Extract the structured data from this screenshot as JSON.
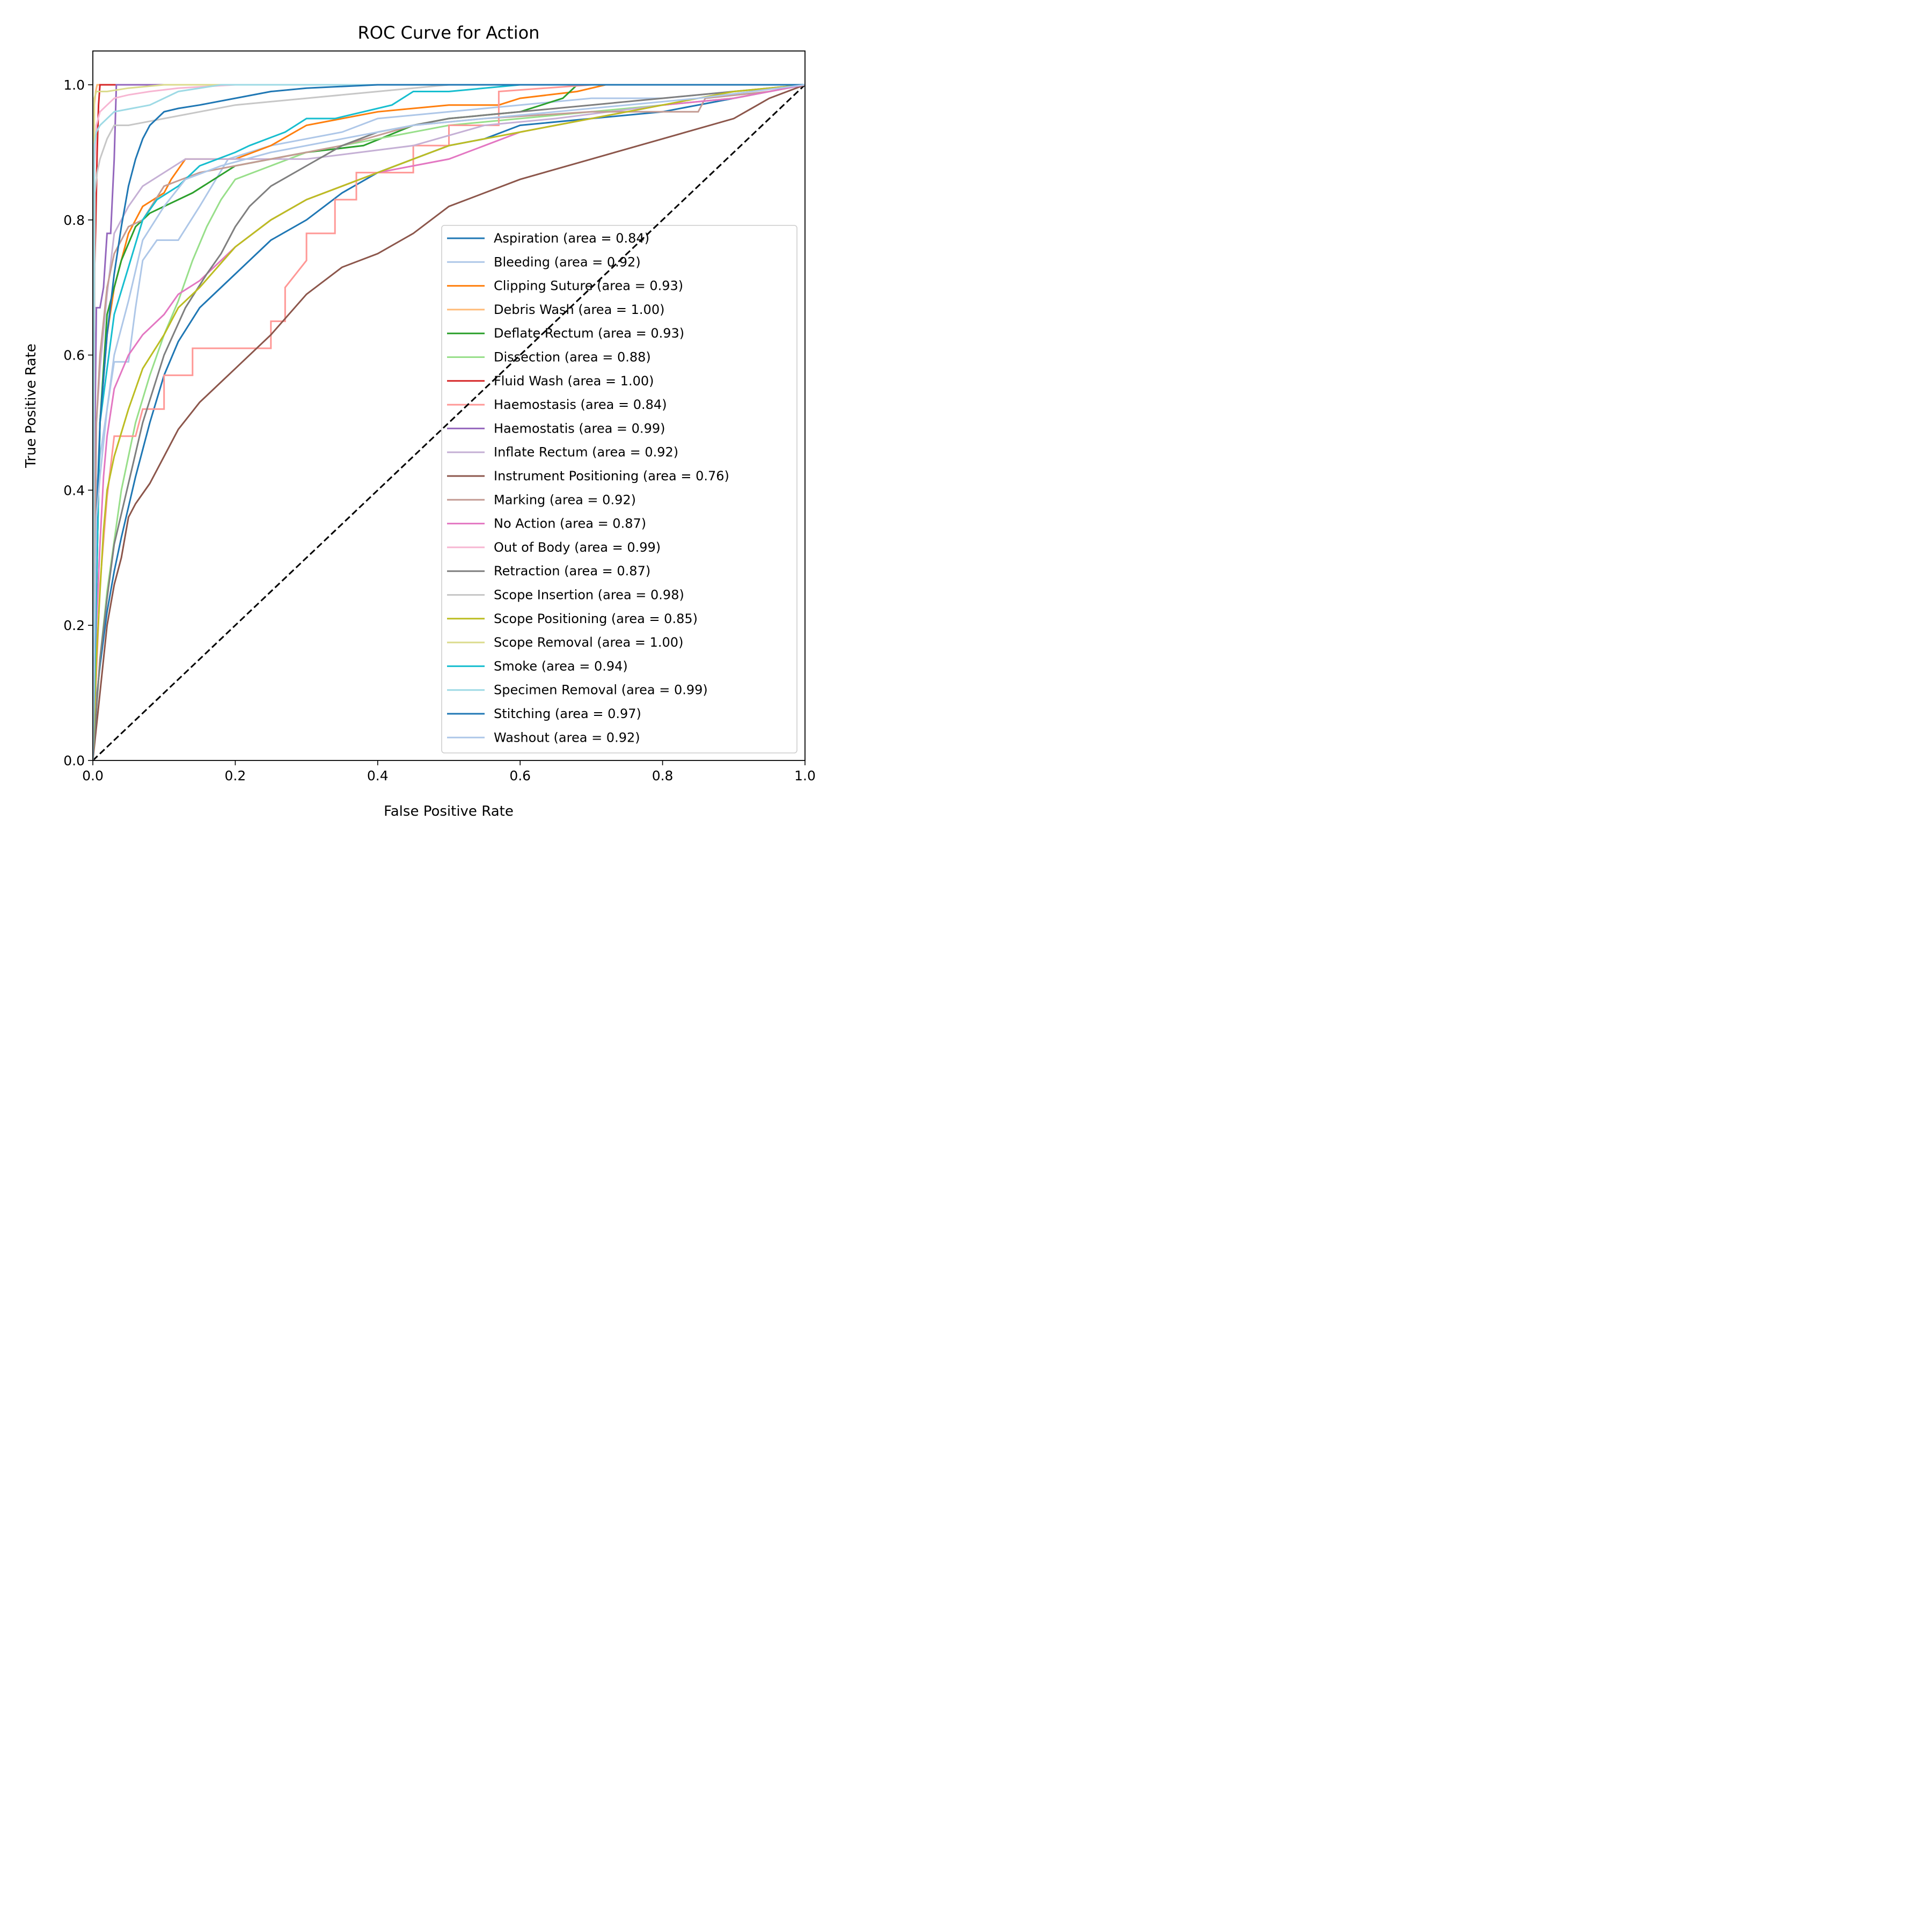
{
  "chart_data": {
    "type": "line",
    "title": "ROC Curve for Action",
    "xlabel": "False Positive Rate",
    "ylabel": "True Positive Rate",
    "xlim": [
      0.0,
      1.0
    ],
    "ylim": [
      0.0,
      1.05
    ],
    "xticks": [
      "0.0",
      "0.2",
      "0.4",
      "0.6",
      "0.8",
      "1.0"
    ],
    "yticks": [
      "0.0",
      "0.2",
      "0.4",
      "0.6",
      "0.8",
      "1.0"
    ],
    "grid": false,
    "legend_position": "lower-right",
    "reference_line": {
      "name": "chance",
      "x": [
        0,
        1
      ],
      "y": [
        0,
        1
      ],
      "color": "#000000",
      "style": "dashed"
    },
    "series": [
      {
        "name": "Aspiration",
        "label": "Aspiration (area = 0.84)",
        "color": "#1f77b4",
        "x": [
          0,
          0.003,
          0.006,
          0.01,
          0.015,
          0.02,
          0.03,
          0.04,
          0.06,
          0.08,
          0.1,
          0.12,
          0.15,
          0.2,
          0.25,
          0.3,
          0.35,
          0.4,
          0.45,
          0.5,
          0.55,
          0.6,
          0.7,
          0.8,
          0.9,
          1.0
        ],
        "y": [
          0,
          0.06,
          0.1,
          0.14,
          0.18,
          0.22,
          0.28,
          0.33,
          0.42,
          0.5,
          0.57,
          0.62,
          0.67,
          0.72,
          0.77,
          0.8,
          0.84,
          0.87,
          0.89,
          0.91,
          0.92,
          0.94,
          0.95,
          0.96,
          0.98,
          1.0
        ]
      },
      {
        "name": "Bleeding",
        "label": "Bleeding (area = 0.92)",
        "color": "#aec7e8",
        "x": [
          0,
          0.005,
          0.01,
          0.02,
          0.03,
          0.05,
          0.06,
          0.07,
          0.09,
          0.12,
          0.15,
          0.19,
          0.25,
          0.3,
          0.35,
          0.4,
          0.5,
          0.6,
          0.7,
          0.8,
          0.9,
          1.0
        ],
        "y": [
          0,
          0.4,
          0.45,
          0.52,
          0.59,
          0.59,
          0.67,
          0.74,
          0.77,
          0.77,
          0.82,
          0.89,
          0.91,
          0.92,
          0.93,
          0.95,
          0.96,
          0.97,
          0.98,
          0.98,
          0.99,
          1.0
        ]
      },
      {
        "name": "Clipping Suture",
        "label": "Clipping Suture (area = 0.93)",
        "color": "#ff7f0e",
        "x": [
          0,
          0.01,
          0.02,
          0.03,
          0.05,
          0.07,
          0.1,
          0.11,
          0.13,
          0.2,
          0.25,
          0.3,
          0.4,
          0.5,
          0.57,
          0.6,
          0.68,
          0.72,
          0.8,
          0.9,
          1.0
        ],
        "y": [
          0,
          0.5,
          0.63,
          0.7,
          0.78,
          0.82,
          0.84,
          0.86,
          0.89,
          0.89,
          0.91,
          0.94,
          0.96,
          0.97,
          0.97,
          0.98,
          0.99,
          1.0,
          1.0,
          1.0,
          1.0
        ]
      },
      {
        "name": "Debris Wash",
        "label": "Debris Wash (area = 1.00)",
        "color": "#ffbb78",
        "x": [
          0,
          0.002,
          0.004,
          0.006,
          0.01,
          0.03,
          0.1,
          0.3,
          0.5,
          0.7,
          0.9,
          1.0
        ],
        "y": [
          0,
          0.97,
          0.99,
          1.0,
          1.0,
          1.0,
          1.0,
          1.0,
          1.0,
          1.0,
          1.0,
          1.0
        ]
      },
      {
        "name": "Deflate Rectum",
        "label": "Deflate Rectum (area = 0.93)",
        "color": "#2ca02c",
        "x": [
          0,
          0.01,
          0.02,
          0.04,
          0.06,
          0.08,
          0.1,
          0.14,
          0.2,
          0.25,
          0.3,
          0.38,
          0.45,
          0.5,
          0.6,
          0.66,
          0.68,
          0.8,
          0.9,
          1.0
        ],
        "y": [
          0,
          0.5,
          0.66,
          0.74,
          0.79,
          0.81,
          0.82,
          0.84,
          0.88,
          0.89,
          0.9,
          0.91,
          0.94,
          0.95,
          0.96,
          0.98,
          1.0,
          1.0,
          1.0,
          1.0
        ]
      },
      {
        "name": "Dissection",
        "label": "Dissection (area = 0.88)",
        "color": "#98df8a",
        "x": [
          0,
          0.01,
          0.02,
          0.04,
          0.06,
          0.08,
          0.1,
          0.12,
          0.14,
          0.16,
          0.18,
          0.2,
          0.25,
          0.3,
          0.35,
          0.4,
          0.5,
          0.6,
          0.7,
          0.8,
          0.9,
          1.0
        ],
        "y": [
          0,
          0.15,
          0.25,
          0.4,
          0.5,
          0.57,
          0.63,
          0.68,
          0.74,
          0.79,
          0.83,
          0.86,
          0.88,
          0.9,
          0.91,
          0.92,
          0.94,
          0.95,
          0.96,
          0.97,
          0.98,
          1.0
        ]
      },
      {
        "name": "Fluid Wash",
        "label": "Fluid Wash (area = 1.00)",
        "color": "#d62728",
        "x": [
          0,
          0.002,
          0.004,
          0.006,
          0.008,
          0.01,
          0.02,
          0.03,
          0.1,
          0.3,
          0.5,
          0.7,
          0.9,
          1.0
        ],
        "y": [
          0,
          0.71,
          0.79,
          0.9,
          0.97,
          1.0,
          1.0,
          1.0,
          1.0,
          1.0,
          1.0,
          1.0,
          1.0,
          1.0
        ]
      },
      {
        "name": "Haemostasis",
        "label": "Haemostasis (area = 0.84)",
        "color": "#ff9896",
        "x": [
          0,
          0.01,
          0.02,
          0.03,
          0.06,
          0.07,
          0.1,
          0.1,
          0.14,
          0.14,
          0.25,
          0.25,
          0.27,
          0.27,
          0.3,
          0.3,
          0.34,
          0.34,
          0.37,
          0.37,
          0.45,
          0.45,
          0.5,
          0.5,
          0.57,
          0.57,
          0.7,
          0.85,
          1.0
        ],
        "y": [
          0,
          0.26,
          0.39,
          0.48,
          0.48,
          0.52,
          0.52,
          0.57,
          0.57,
          0.61,
          0.61,
          0.65,
          0.65,
          0.7,
          0.74,
          0.78,
          0.78,
          0.83,
          0.83,
          0.87,
          0.87,
          0.91,
          0.91,
          0.94,
          0.94,
          0.99,
          1.0,
          1.0,
          1.0
        ]
      },
      {
        "name": "Haemostatis",
        "label": "Haemostatis (area = 0.99)",
        "color": "#9467bd",
        "x": [
          0,
          0.003,
          0.005,
          0.01,
          0.015,
          0.02,
          0.025,
          0.03,
          0.033,
          0.04,
          0.1,
          0.3,
          0.5,
          0.7,
          0.9,
          1.0
        ],
        "y": [
          0,
          0.5,
          0.67,
          0.67,
          0.7,
          0.78,
          0.78,
          0.89,
          1.0,
          1.0,
          1.0,
          1.0,
          1.0,
          1.0,
          1.0,
          1.0
        ]
      },
      {
        "name": "Inflate Rectum",
        "label": "Inflate Rectum (area = 0.92)",
        "color": "#c5b0d5",
        "x": [
          0,
          0.005,
          0.01,
          0.02,
          0.03,
          0.05,
          0.07,
          0.1,
          0.13,
          0.2,
          0.3,
          0.45,
          0.55,
          0.65,
          0.8,
          0.9,
          1.0
        ],
        "y": [
          0,
          0.5,
          0.58,
          0.69,
          0.78,
          0.82,
          0.85,
          0.87,
          0.89,
          0.89,
          0.89,
          0.91,
          0.94,
          0.95,
          0.97,
          0.98,
          1.0
        ]
      },
      {
        "name": "Instrument Positioning",
        "label": "Instrument Positioning (area = 0.76)",
        "color": "#8c564b",
        "x": [
          0,
          0.01,
          0.02,
          0.03,
          0.04,
          0.05,
          0.06,
          0.08,
          0.1,
          0.12,
          0.15,
          0.18,
          0.2,
          0.25,
          0.3,
          0.35,
          0.4,
          0.45,
          0.5,
          0.55,
          0.6,
          0.7,
          0.8,
          0.9,
          0.95,
          1.0
        ],
        "y": [
          0,
          0.1,
          0.2,
          0.26,
          0.3,
          0.36,
          0.38,
          0.41,
          0.45,
          0.49,
          0.53,
          0.56,
          0.58,
          0.63,
          0.69,
          0.73,
          0.75,
          0.78,
          0.82,
          0.84,
          0.86,
          0.89,
          0.92,
          0.95,
          0.98,
          1.0
        ]
      },
      {
        "name": "Marking",
        "label": "Marking (area = 0.92)",
        "color": "#c49c94",
        "x": [
          0,
          0.005,
          0.01,
          0.02,
          0.03,
          0.05,
          0.07,
          0.1,
          0.15,
          0.2,
          0.25,
          0.35,
          0.45,
          0.55,
          0.7,
          0.85,
          0.86,
          0.95,
          1.0
        ],
        "y": [
          0,
          0.5,
          0.6,
          0.7,
          0.75,
          0.79,
          0.8,
          0.85,
          0.87,
          0.88,
          0.89,
          0.91,
          0.94,
          0.95,
          0.96,
          0.96,
          0.98,
          0.99,
          1.0
        ]
      },
      {
        "name": "No Action",
        "label": "No Action (area = 0.87)",
        "color": "#e377c2",
        "x": [
          0,
          0.005,
          0.01,
          0.015,
          0.02,
          0.03,
          0.05,
          0.07,
          0.1,
          0.12,
          0.15,
          0.2,
          0.25,
          0.3,
          0.35,
          0.4,
          0.45,
          0.5,
          0.55,
          0.6,
          0.7,
          0.8,
          0.9,
          1.0
        ],
        "y": [
          0,
          0.2,
          0.32,
          0.42,
          0.48,
          0.55,
          0.6,
          0.63,
          0.66,
          0.69,
          0.71,
          0.76,
          0.8,
          0.83,
          0.85,
          0.87,
          0.88,
          0.89,
          0.91,
          0.93,
          0.95,
          0.97,
          0.98,
          1.0
        ]
      },
      {
        "name": "Out of Body",
        "label": "Out of Body (area = 0.99)",
        "color": "#f7b6d2",
        "x": [
          0,
          0.002,
          0.005,
          0.01,
          0.02,
          0.03,
          0.05,
          0.08,
          0.12,
          0.2,
          0.35,
          0.5,
          0.7,
          0.9,
          1.0
        ],
        "y": [
          0,
          0.88,
          0.94,
          0.96,
          0.97,
          0.98,
          0.985,
          0.99,
          0.995,
          1.0,
          1.0,
          1.0,
          1.0,
          1.0,
          1.0
        ]
      },
      {
        "name": "Retraction",
        "label": "Retraction (area = 0.87)",
        "color": "#7f7f7f",
        "x": [
          0,
          0.01,
          0.02,
          0.03,
          0.05,
          0.07,
          0.1,
          0.13,
          0.16,
          0.18,
          0.2,
          0.22,
          0.25,
          0.3,
          0.35,
          0.4,
          0.45,
          0.5,
          0.6,
          0.7,
          0.8,
          0.9,
          1.0
        ],
        "y": [
          0,
          0.15,
          0.24,
          0.32,
          0.41,
          0.5,
          0.6,
          0.67,
          0.72,
          0.75,
          0.79,
          0.82,
          0.85,
          0.88,
          0.91,
          0.93,
          0.94,
          0.95,
          0.96,
          0.97,
          0.98,
          0.99,
          1.0
        ]
      },
      {
        "name": "Scope Insertion",
        "label": "Scope Insertion (area = 0.98)",
        "color": "#c7c7c7",
        "x": [
          0,
          0.003,
          0.006,
          0.01,
          0.02,
          0.03,
          0.05,
          0.1,
          0.15,
          0.2,
          0.3,
          0.4,
          0.5,
          0.6,
          0.7,
          0.8,
          0.9,
          1.0
        ],
        "y": [
          0,
          0.84,
          0.87,
          0.89,
          0.92,
          0.94,
          0.94,
          0.95,
          0.96,
          0.97,
          0.98,
          0.99,
          1.0,
          1.0,
          1.0,
          1.0,
          1.0,
          1.0
        ]
      },
      {
        "name": "Scope Positioning",
        "label": "Scope Positioning (area = 0.85)",
        "color": "#bcbd22",
        "x": [
          0,
          0.005,
          0.01,
          0.015,
          0.02,
          0.03,
          0.05,
          0.07,
          0.1,
          0.12,
          0.15,
          0.2,
          0.25,
          0.3,
          0.35,
          0.4,
          0.45,
          0.5,
          0.6,
          0.7,
          0.8,
          0.9,
          1.0
        ],
        "y": [
          0,
          0.15,
          0.25,
          0.34,
          0.4,
          0.45,
          0.52,
          0.58,
          0.63,
          0.67,
          0.7,
          0.76,
          0.8,
          0.83,
          0.85,
          0.87,
          0.89,
          0.91,
          0.93,
          0.95,
          0.97,
          0.99,
          1.0
        ]
      },
      {
        "name": "Scope Removal",
        "label": "Scope Removal (area = 1.00)",
        "color": "#dbdb8d",
        "x": [
          0,
          0.002,
          0.005,
          0.02,
          0.05,
          0.1,
          0.18,
          0.3,
          0.5,
          0.7,
          0.9,
          1.0
        ],
        "y": [
          0,
          0.98,
          0.99,
          0.99,
          0.995,
          1.0,
          1.0,
          1.0,
          1.0,
          1.0,
          1.0,
          1.0
        ]
      },
      {
        "name": "Smoke",
        "label": "Smoke (area = 0.94)",
        "color": "#17becf",
        "x": [
          0,
          0.01,
          0.02,
          0.03,
          0.05,
          0.07,
          0.09,
          0.12,
          0.15,
          0.2,
          0.22,
          0.27,
          0.3,
          0.34,
          0.42,
          0.45,
          0.5,
          0.6,
          0.7,
          0.8,
          0.9,
          1.0
        ],
        "y": [
          0,
          0.5,
          0.58,
          0.66,
          0.73,
          0.8,
          0.83,
          0.85,
          0.88,
          0.9,
          0.91,
          0.93,
          0.95,
          0.95,
          0.97,
          0.99,
          0.99,
          1.0,
          1.0,
          1.0,
          1.0,
          1.0
        ]
      },
      {
        "name": "Specimen Removal",
        "label": "Specimen Removal (area = 0.99)",
        "color": "#9edae5",
        "x": [
          0,
          0.002,
          0.005,
          0.01,
          0.02,
          0.03,
          0.08,
          0.12,
          0.18,
          0.3,
          0.5,
          0.7,
          0.9,
          1.0
        ],
        "y": [
          0,
          0.91,
          0.93,
          0.94,
          0.95,
          0.96,
          0.97,
          0.99,
          1.0,
          1.0,
          1.0,
          1.0,
          1.0,
          1.0
        ]
      },
      {
        "name": "Stitching",
        "label": "Stitching (area = 0.97)",
        "color": "#1f77b4",
        "x": [
          0,
          0.005,
          0.01,
          0.02,
          0.03,
          0.04,
          0.05,
          0.06,
          0.07,
          0.08,
          0.1,
          0.12,
          0.15,
          0.2,
          0.25,
          0.3,
          0.4,
          0.5,
          0.7,
          0.9,
          1.0
        ],
        "y": [
          0,
          0.35,
          0.5,
          0.63,
          0.72,
          0.79,
          0.85,
          0.89,
          0.92,
          0.94,
          0.96,
          0.965,
          0.97,
          0.98,
          0.99,
          0.995,
          1.0,
          1.0,
          1.0,
          1.0,
          1.0
        ]
      },
      {
        "name": "Washout",
        "label": "Washout (area = 0.92)",
        "color": "#aec7e8",
        "x": [
          0,
          0.005,
          0.01,
          0.02,
          0.03,
          0.05,
          0.07,
          0.1,
          0.13,
          0.18,
          0.25,
          0.35,
          0.45,
          0.55,
          0.65,
          0.75,
          0.85,
          1.0
        ],
        "y": [
          0,
          0.36,
          0.42,
          0.52,
          0.6,
          0.68,
          0.77,
          0.82,
          0.86,
          0.88,
          0.9,
          0.92,
          0.94,
          0.95,
          0.96,
          0.97,
          0.98,
          1.0
        ]
      }
    ]
  }
}
